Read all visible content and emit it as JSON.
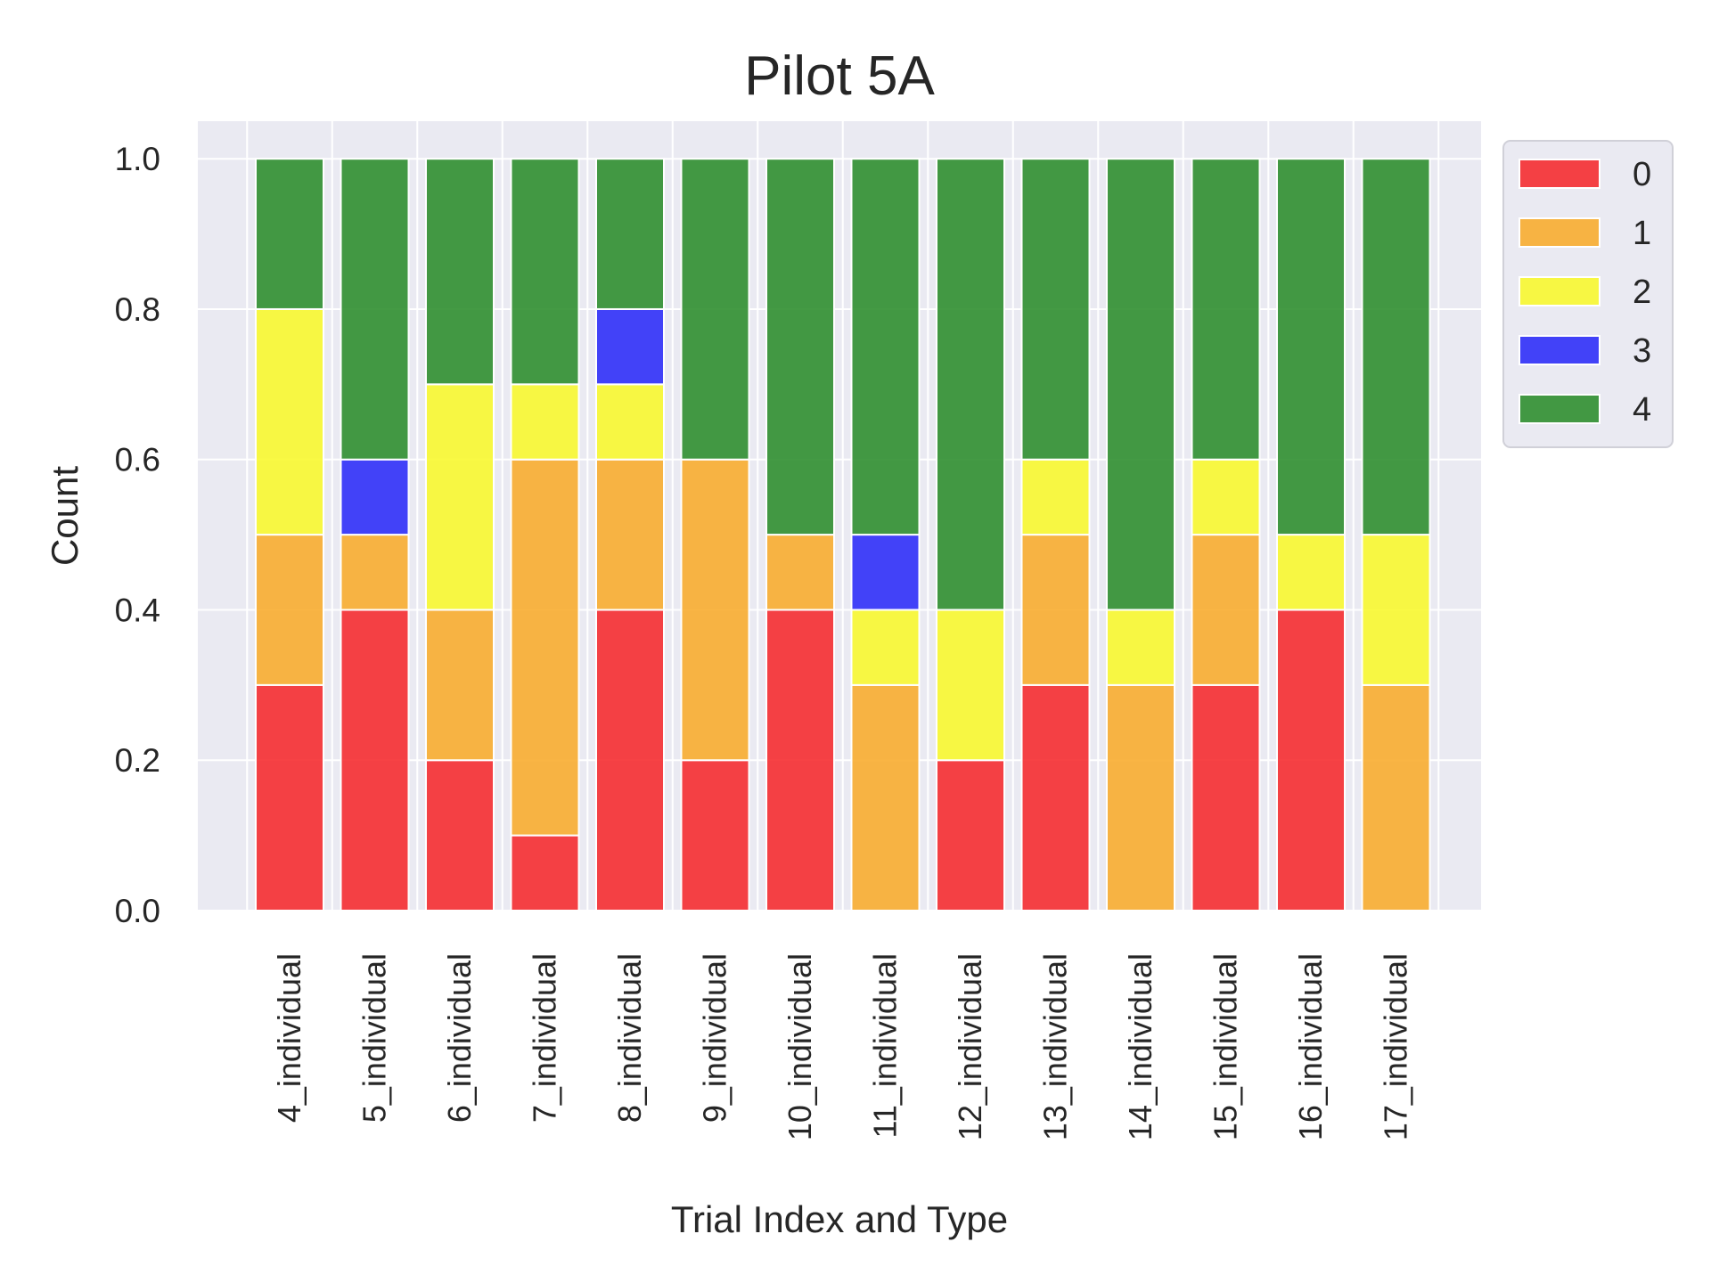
{
  "chart_data": {
    "type": "bar",
    "stacked": true,
    "title": "Pilot 5A",
    "xlabel": "Trial Index and Type",
    "ylabel": "Count",
    "ylim": [
      0,
      1.05
    ],
    "yticks": [
      "0.0",
      "0.2",
      "0.4",
      "0.6",
      "0.8",
      "1.0"
    ],
    "grid": true,
    "legend_position": "outside-right",
    "categories": [
      "4_individual",
      "5_individual",
      "6_individual",
      "7_individual",
      "8_individual",
      "9_individual",
      "10_individual",
      "11_individual",
      "12_individual",
      "13_individual",
      "14_individual",
      "15_individual",
      "16_individual",
      "17_individual"
    ],
    "series": [
      {
        "name": "0",
        "color": "#f5282b",
        "values": [
          0.3,
          0.4,
          0.2,
          0.1,
          0.4,
          0.2,
          0.4,
          0,
          0.2,
          0.3,
          0,
          0.3,
          0.4,
          0
        ]
      },
      {
        "name": "1",
        "color": "#f8ab2a",
        "values": [
          0.2,
          0.1,
          0.2,
          0.5,
          0.2,
          0.4,
          0.1,
          0.3,
          0,
          0.2,
          0.3,
          0.2,
          0,
          0.3
        ]
      },
      {
        "name": "2",
        "color": "#f8f82a",
        "values": [
          0.3,
          0,
          0.3,
          0.1,
          0.1,
          0,
          0,
          0.1,
          0.2,
          0.1,
          0.1,
          0.1,
          0.1,
          0.2
        ]
      },
      {
        "name": "3",
        "color": "#2a2af8",
        "values": [
          0,
          0.1,
          0,
          0,
          0.1,
          0,
          0,
          0.1,
          0,
          0,
          0,
          0,
          0,
          0
        ]
      },
      {
        "name": "4",
        "color": "#2a8c2a",
        "values": [
          0.2,
          0.4,
          0.3,
          0.3,
          0.2,
          0.4,
          0.5,
          0.5,
          0.6,
          0.4,
          0.6,
          0.4,
          0.5,
          0.5
        ]
      }
    ]
  }
}
